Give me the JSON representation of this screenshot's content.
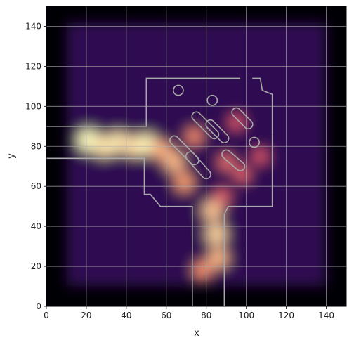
{
  "chart_data": {
    "type": "heatmap",
    "title": "",
    "xlabel": "x",
    "ylabel": "y",
    "xlim": [
      0,
      150
    ],
    "ylim": [
      0,
      150
    ],
    "xticks": [
      0,
      20,
      40,
      60,
      80,
      100,
      120,
      140
    ],
    "yticks": [
      0,
      20,
      40,
      60,
      80,
      100,
      120,
      140
    ],
    "grid": true,
    "colormap": "magma",
    "description_free": true,
    "field_hotspots": [
      {
        "x": 21,
        "y": 83,
        "intensity": 1.0
      },
      {
        "x": 29,
        "y": 80,
        "intensity": 0.9
      },
      {
        "x": 36,
        "y": 82,
        "intensity": 0.92
      },
      {
        "x": 44,
        "y": 80,
        "intensity": 0.85
      },
      {
        "x": 50,
        "y": 81,
        "intensity": 0.95
      },
      {
        "x": 58,
        "y": 78,
        "intensity": 0.7
      },
      {
        "x": 64,
        "y": 72,
        "intensity": 0.75
      },
      {
        "x": 69,
        "y": 62,
        "intensity": 0.65
      },
      {
        "x": 74,
        "y": 85,
        "intensity": 0.55
      },
      {
        "x": 83,
        "y": 48,
        "intensity": 0.8
      },
      {
        "x": 85,
        "y": 36,
        "intensity": 0.85
      },
      {
        "x": 86,
        "y": 24,
        "intensity": 0.75
      },
      {
        "x": 78,
        "y": 18,
        "intensity": 0.6
      },
      {
        "x": 90,
        "y": 72,
        "intensity": 0.45
      },
      {
        "x": 98,
        "y": 66,
        "intensity": 0.4
      },
      {
        "x": 107,
        "y": 75,
        "intensity": 0.35
      },
      {
        "x": 95,
        "y": 92,
        "intensity": 0.35
      },
      {
        "x": 88,
        "y": 55,
        "intensity": 0.4
      }
    ],
    "outline": [
      [
        [
          0,
          90
        ],
        [
          50,
          90
        ],
        [
          50,
          114
        ],
        [
          97,
          114
        ]
      ],
      [
        [
          103,
          114
        ],
        [
          107,
          114
        ],
        [
          108,
          108
        ],
        [
          113,
          106
        ],
        [
          113,
          86
        ]
      ],
      [
        [
          0,
          74
        ],
        [
          49,
          74
        ],
        [
          49,
          56
        ],
        [
          52,
          56
        ],
        [
          57,
          50
        ],
        [
          73,
          50
        ],
        [
          73,
          0
        ]
      ],
      [
        [
          89,
          0
        ],
        [
          89,
          46
        ],
        [
          91,
          50
        ],
        [
          113,
          50
        ],
        [
          113,
          86
        ]
      ]
    ],
    "obstacles": [
      {
        "type": "circle",
        "x": 66,
        "y": 108,
        "r": 2.5
      },
      {
        "type": "circle",
        "x": 83,
        "y": 103,
        "r": 2.5
      },
      {
        "type": "circle",
        "x": 104,
        "y": 82,
        "r": 2.5
      },
      {
        "type": "capsule",
        "x1": 75,
        "y1": 95,
        "x2": 84,
        "y2": 86,
        "r": 2.2
      },
      {
        "type": "capsule",
        "x1": 82,
        "y1": 91,
        "x2": 89,
        "y2": 84,
        "r": 2.2
      },
      {
        "type": "capsule",
        "x1": 95,
        "y1": 97,
        "x2": 101,
        "y2": 91,
        "r": 2.2
      },
      {
        "type": "capsule",
        "x1": 64,
        "y1": 83,
        "x2": 74,
        "y2": 73,
        "r": 2.2
      },
      {
        "type": "capsule",
        "x1": 72,
        "y1": 75,
        "x2": 80,
        "y2": 66,
        "r": 2.2
      },
      {
        "type": "capsule",
        "x1": 90,
        "y1": 76,
        "x2": 97,
        "y2": 70,
        "r": 2.2
      }
    ]
  }
}
